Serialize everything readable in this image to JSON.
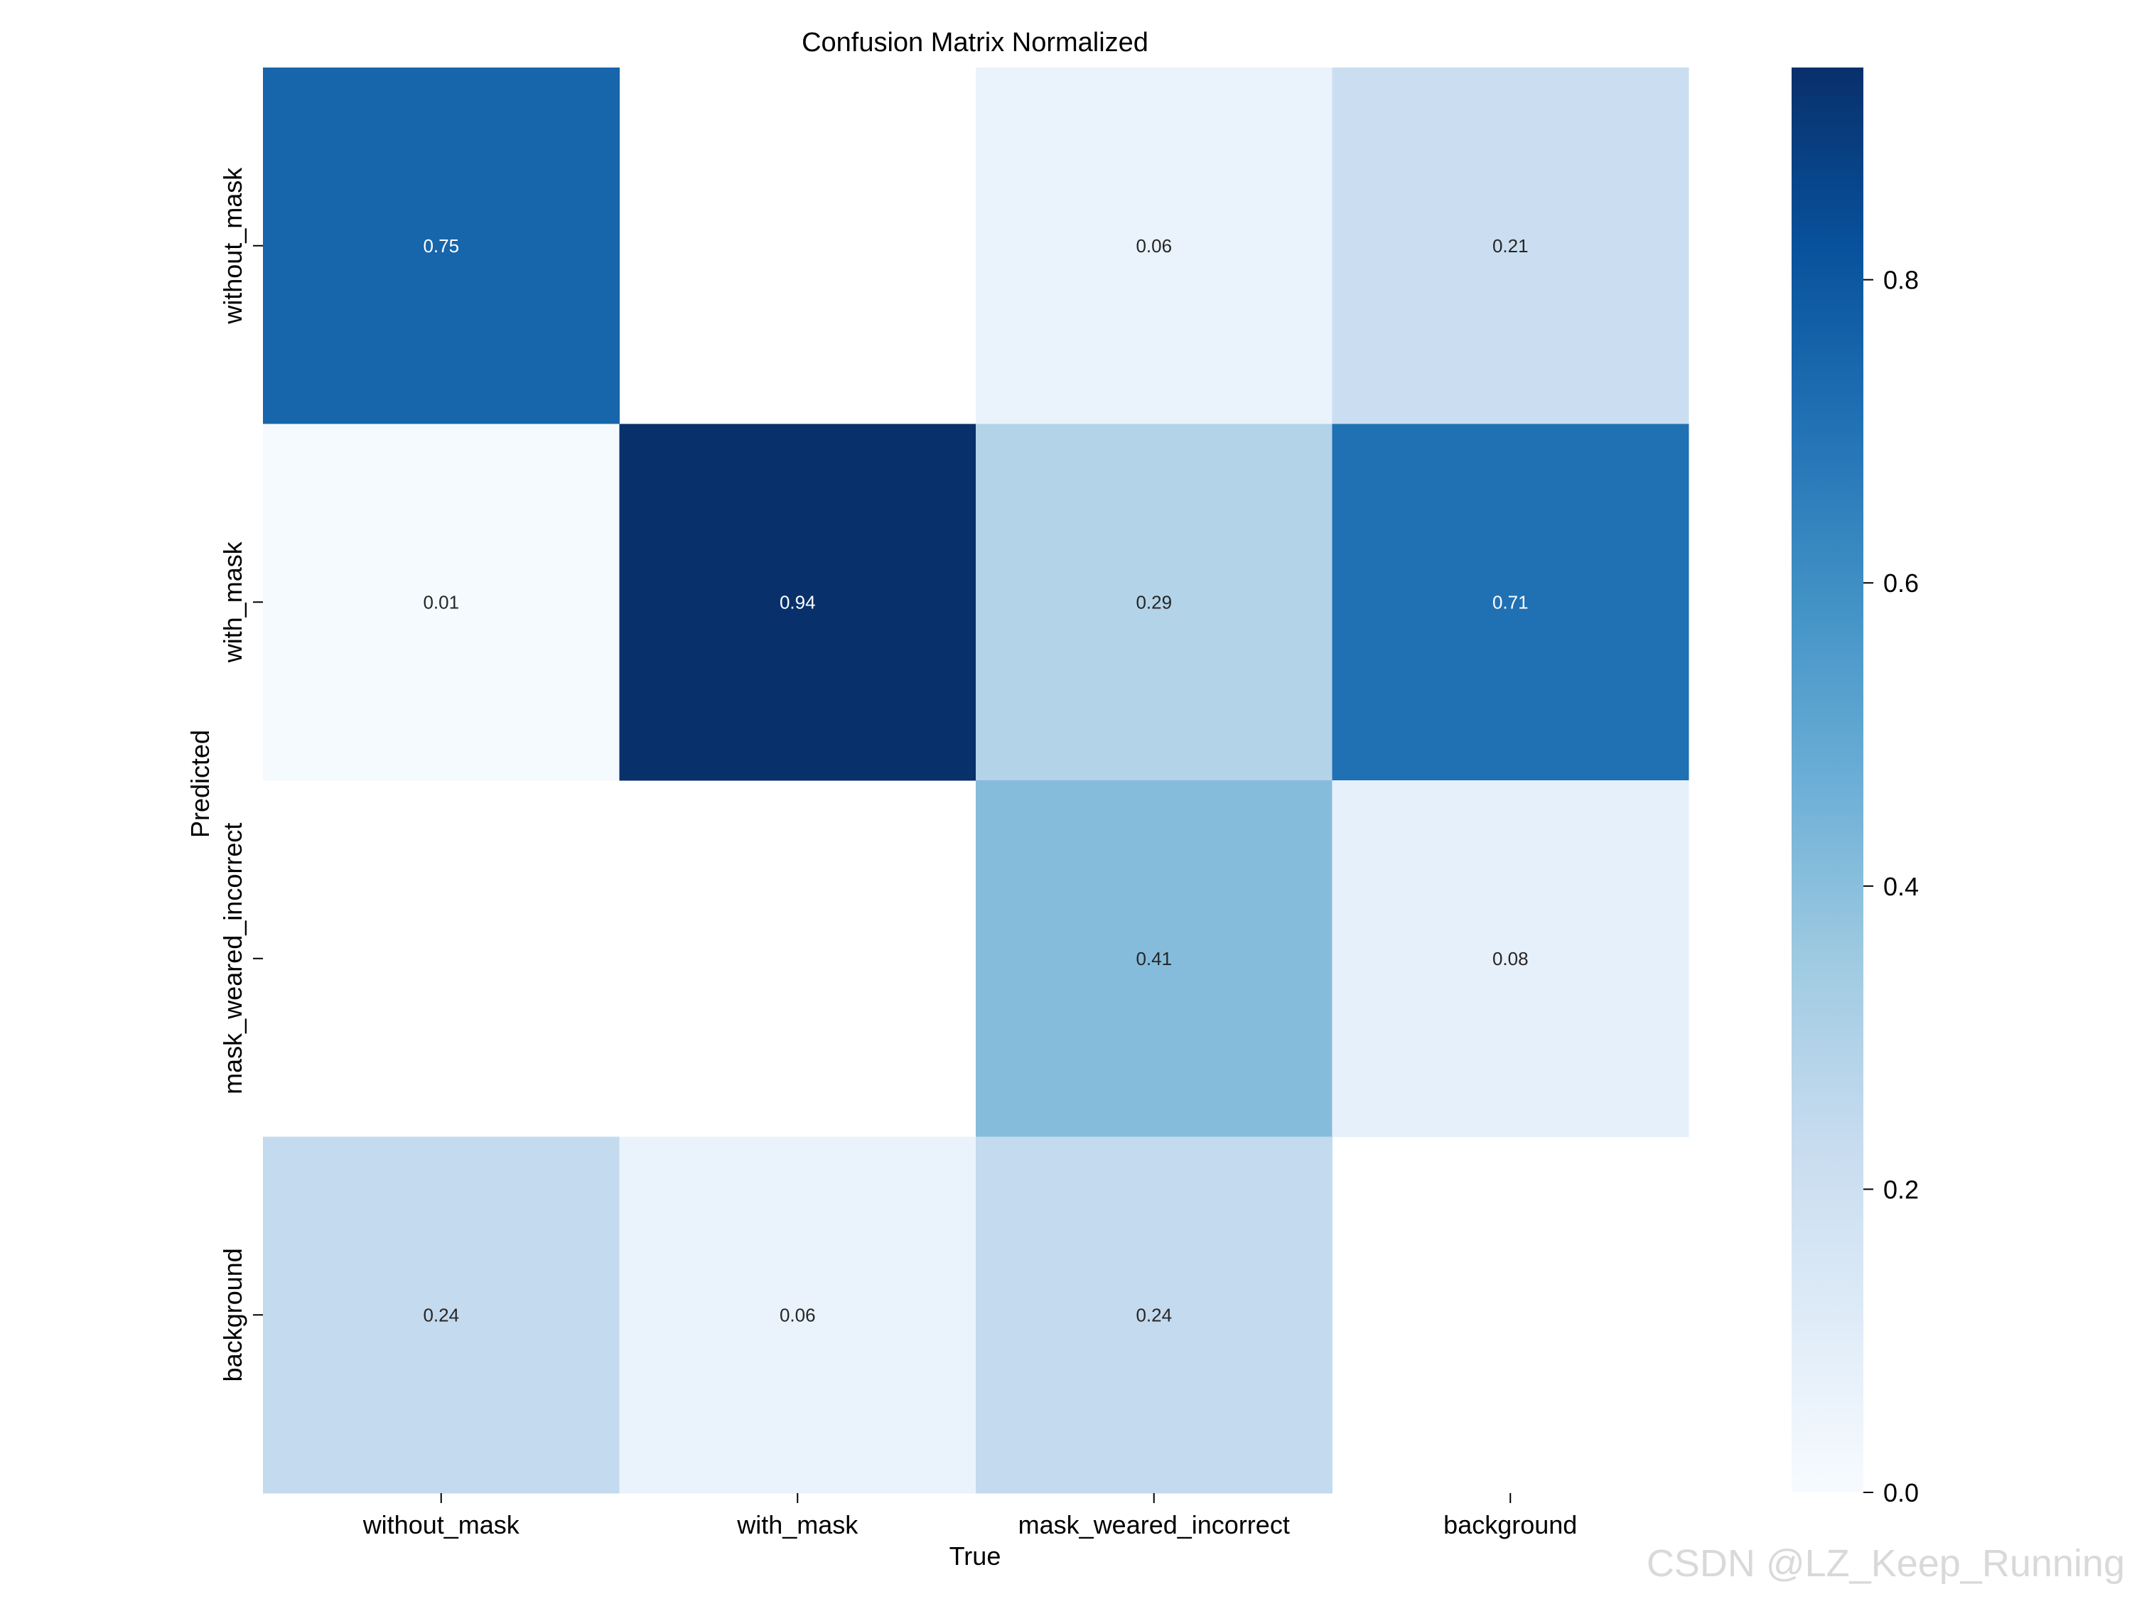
{
  "watermark": "CSDN @LZ_Keep_Running",
  "colors": {
    "colormap": [
      "#f7fbff",
      "#deebf7",
      "#c6dbef",
      "#9ecae1",
      "#6baed6",
      "#4292c6",
      "#2171b5",
      "#08519c",
      "#08306b"
    ],
    "background": "#ffffff",
    "text_dark": "#262626",
    "text_light": "#ffffff"
  },
  "chart_data": {
    "type": "heatmap",
    "title": "Confusion Matrix Normalized",
    "xlabel": "True",
    "ylabel": "Predicted",
    "x_categories": [
      "without_mask",
      "with_mask",
      "mask_weared_incorrect",
      "background"
    ],
    "y_categories": [
      "without_mask",
      "with_mask",
      "mask_weared_incorrect",
      "background"
    ],
    "values": [
      [
        0.75,
        null,
        0.06,
        0.21
      ],
      [
        0.01,
        0.94,
        0.29,
        0.71
      ],
      [
        null,
        null,
        0.41,
        0.08
      ],
      [
        0.24,
        0.06,
        0.24,
        null
      ]
    ],
    "value_format": "0.00",
    "empty_cells_are_blank": true,
    "colorbar": {
      "ticks": [
        "0.0",
        "0.2",
        "0.4",
        "0.6",
        "0.8"
      ],
      "tick_values": [
        0.0,
        0.2,
        0.4,
        0.6,
        0.8
      ],
      "range": [
        0.0,
        0.94
      ]
    }
  }
}
